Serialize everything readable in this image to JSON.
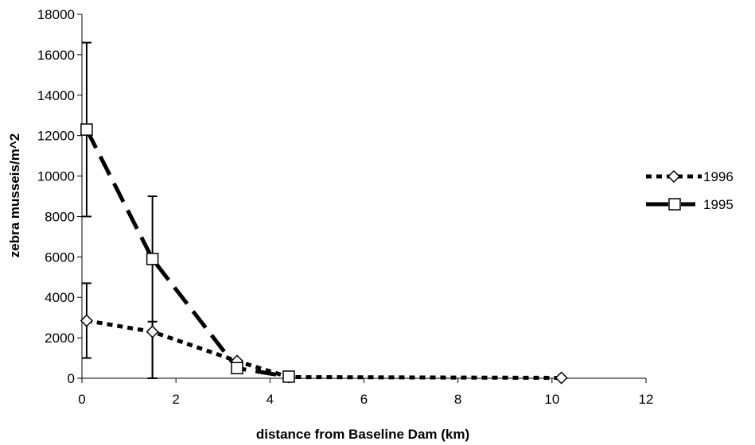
{
  "chart_data": {
    "type": "line",
    "title": "",
    "xlabel": "distance from Baseline Dam (km)",
    "ylabel": "zebra musseis/m^2",
    "xlim": [
      0,
      12
    ],
    "ylim": [
      0,
      18000
    ],
    "xticks": [
      0,
      2,
      4,
      6,
      8,
      10,
      12
    ],
    "yticks": [
      0,
      2000,
      4000,
      6000,
      8000,
      10000,
      12000,
      14000,
      16000,
      18000
    ],
    "grid": false,
    "legend_position": "right",
    "series": [
      {
        "name": "1996",
        "marker": "diamond",
        "line_style": "dotted",
        "color": "#000000",
        "points": [
          {
            "x": 0.1,
            "y": 2850,
            "err_low": 1000,
            "err_high": 4700
          },
          {
            "x": 1.5,
            "y": 2300,
            "err_low": 0,
            "err_high": 2800
          },
          {
            "x": 3.3,
            "y": 850
          },
          {
            "x": 4.4,
            "y": 60
          },
          {
            "x": 10.2,
            "y": 20
          }
        ]
      },
      {
        "name": "1995",
        "marker": "square",
        "line_style": "dashed",
        "color": "#000000",
        "points": [
          {
            "x": 0.1,
            "y": 12300,
            "err_low": 8000,
            "err_high": 16600
          },
          {
            "x": 1.5,
            "y": 5900,
            "err_low": 0,
            "err_high": 9000
          },
          {
            "x": 3.3,
            "y": 500
          },
          {
            "x": 4.4,
            "y": 80
          }
        ]
      }
    ]
  }
}
